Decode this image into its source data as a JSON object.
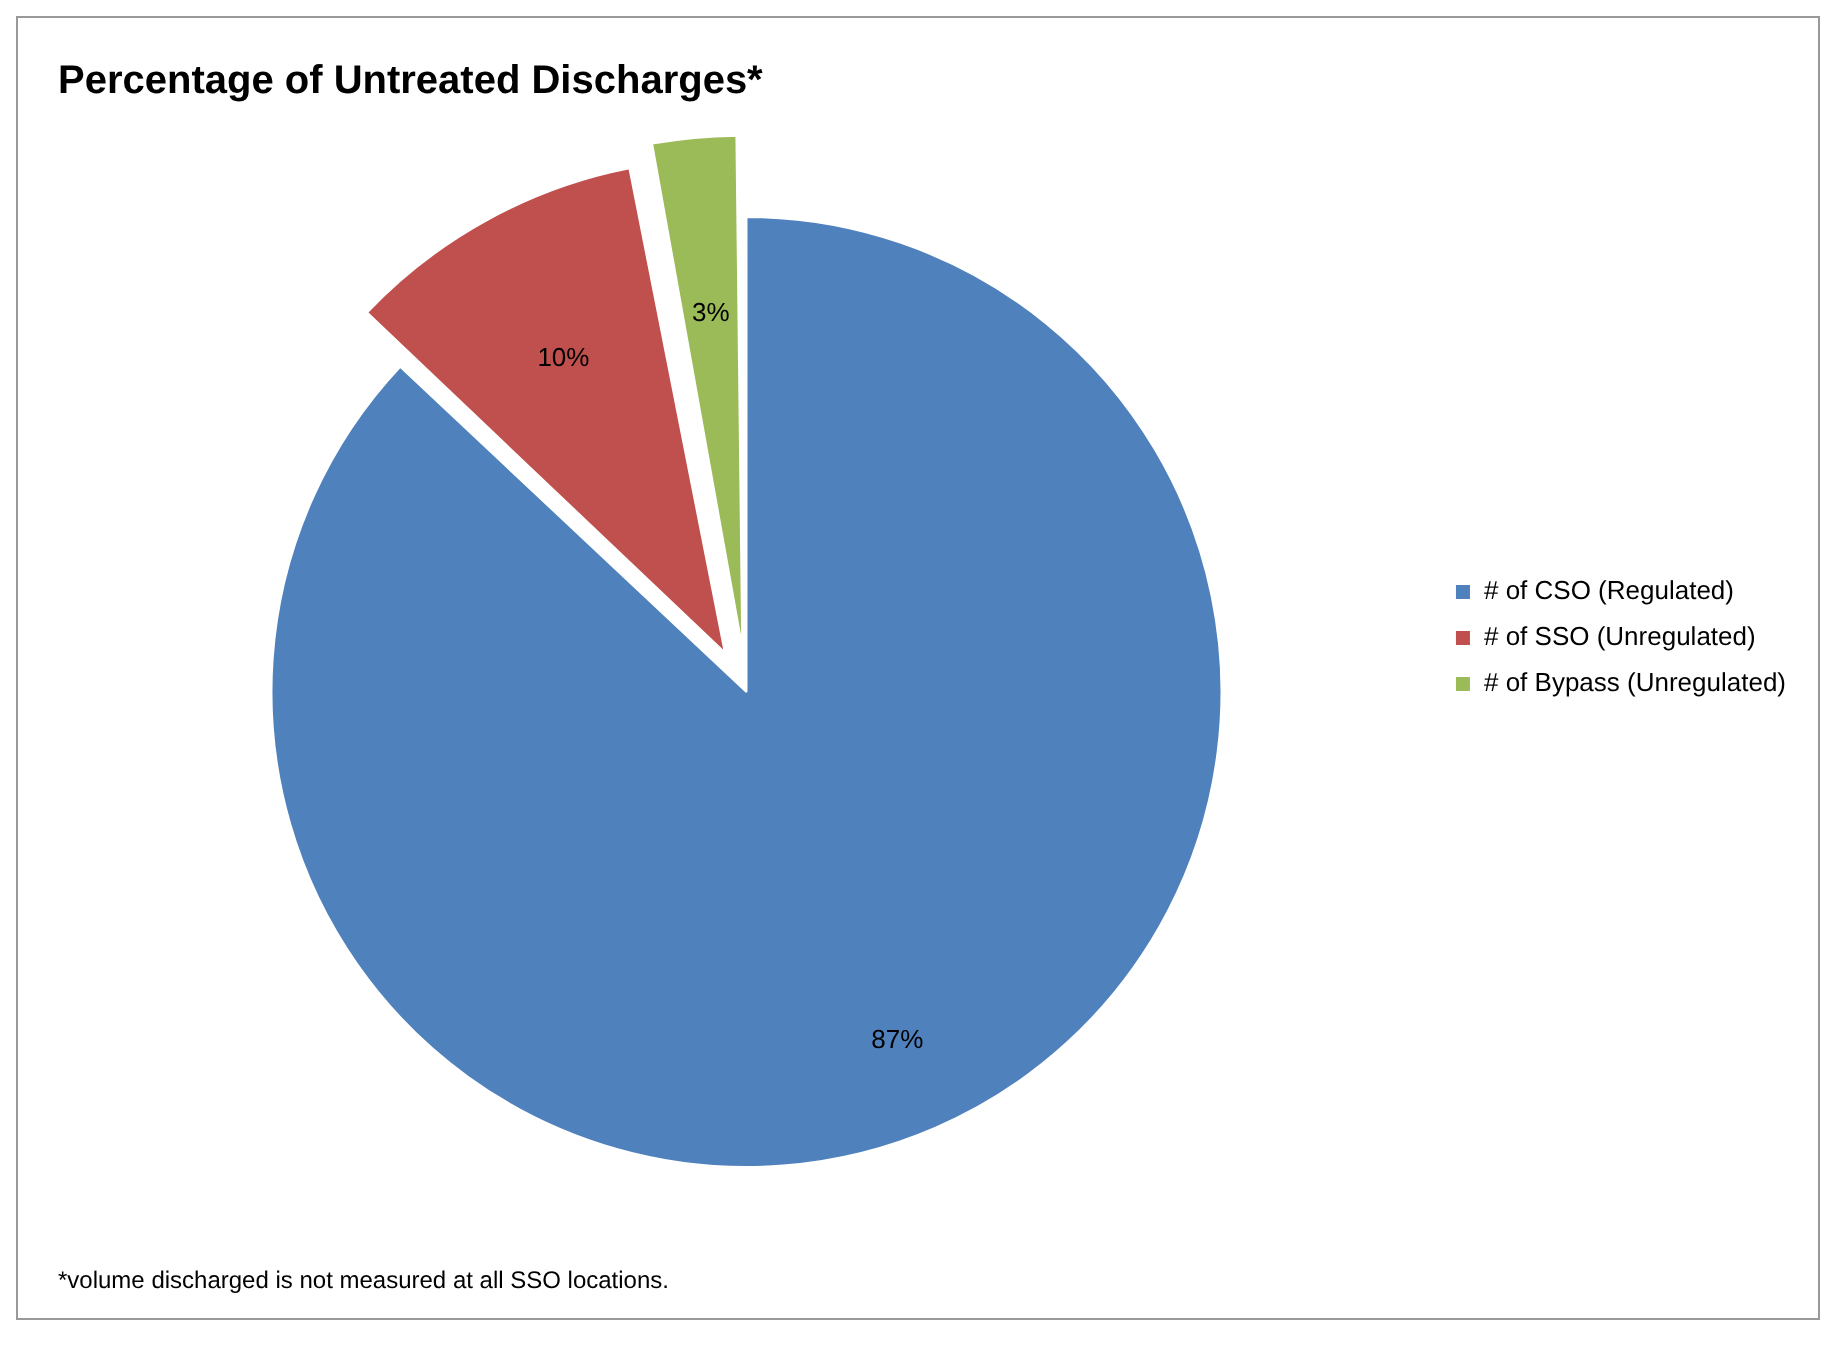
{
  "chart_data": {
    "type": "pie",
    "title": "Percentage of Untreated Discharges*",
    "categories": [
      "# of CSO (Regulated)",
      "# of SSO (Unregulated)",
      "# of Bypass (Unregulated)"
    ],
    "values": [
      87,
      10,
      3
    ],
    "colors": [
      "#4f81bd",
      "#c0504d",
      "#9bbb59"
    ],
    "value_labels": [
      "87%",
      "10%",
      "3%"
    ],
    "legend": "right",
    "annotations": [
      "*volume discharged is not measured at all SSO locations."
    ]
  }
}
